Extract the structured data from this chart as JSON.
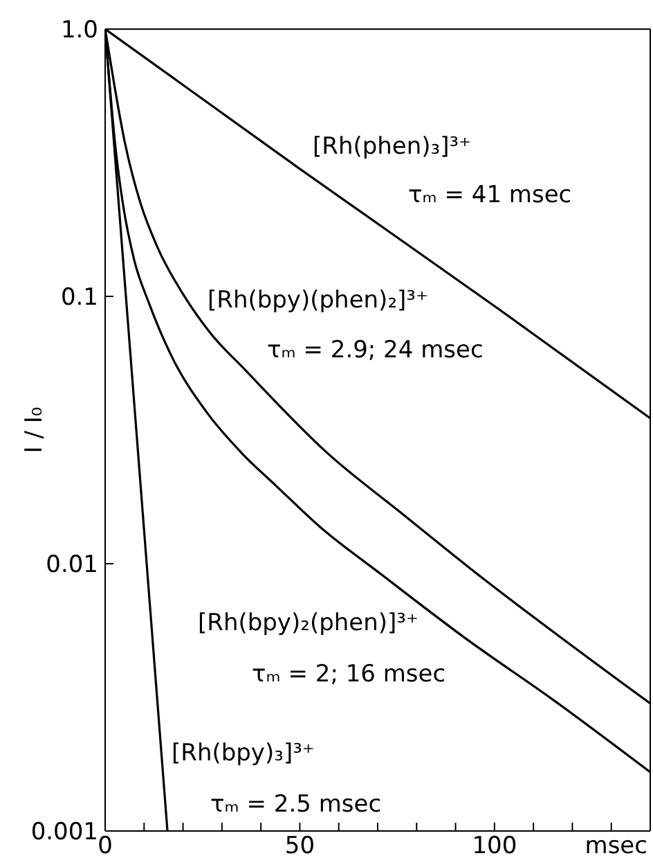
{
  "chart_data": {
    "type": "line",
    "xlabel": "msec",
    "ylabel": "I / I₀",
    "xlim": [
      0,
      140
    ],
    "xticks": [
      0,
      {
        "value": 10,
        "label": null
      },
      {
        "value": 20,
        "label": null
      },
      {
        "value": 30,
        "label": null
      },
      {
        "value": 40,
        "label": null
      },
      50,
      {
        "value": 60,
        "label": null
      },
      {
        "value": 70,
        "label": null
      },
      {
        "value": 80,
        "label": null
      },
      {
        "value": 90,
        "label": null
      },
      100,
      {
        "value": 110,
        "label": null
      },
      {
        "value": 120,
        "label": null
      },
      {
        "value": 130,
        "label": null
      }
    ],
    "ylim": [
      0.001,
      1
    ],
    "yticks": [
      0.001,
      0.01,
      0.1,
      {
        "value": 1,
        "label": "1.0"
      }
    ],
    "log": true,
    "line_style": "solid",
    "series": [
      {
        "name": "[Rh(phen)₃]³⁺",
        "color": "#000000",
        "x": [
          0,
          50,
          100,
          140
        ],
        "values": [
          1,
          0.3,
          0.092,
          0.035
        ]
      },
      {
        "name": "[Rh(bpy)(phen)₂]³⁺",
        "color": "#000000",
        "x": [
          0,
          2.5,
          5,
          9,
          13.5,
          20,
          27,
          36,
          57,
          76,
          93,
          140
        ],
        "values": [
          1,
          0.6,
          0.38,
          0.225,
          0.152,
          0.102,
          0.073,
          0.053,
          0.026,
          0.0155,
          0.0098,
          0.003
        ]
      },
      {
        "name": "[Rh(bpy)₂(phen)]³⁺",
        "color": "#000000",
        "x": [
          0,
          2.8,
          4.6,
          7.4,
          11.3,
          17,
          26,
          35,
          44,
          55,
          71,
          93,
          115,
          140
        ],
        "values": [
          1,
          0.345,
          0.22,
          0.138,
          0.094,
          0.06,
          0.037,
          0.026,
          0.0195,
          0.0138,
          0.0091,
          0.0052,
          0.0031,
          0.00166
        ]
      },
      {
        "name": "[Rh(bpy)₃]³⁺",
        "color": "#000000",
        "x": [
          0,
          16
        ],
        "values": [
          1,
          0.001
        ]
      }
    ],
    "annotations": [
      "τₘ = 41 msec",
      "τₘ = 2.9; 24 msec",
      "τₘ = 2; 16 msec",
      "τₘ = 2.5 msec"
    ]
  }
}
